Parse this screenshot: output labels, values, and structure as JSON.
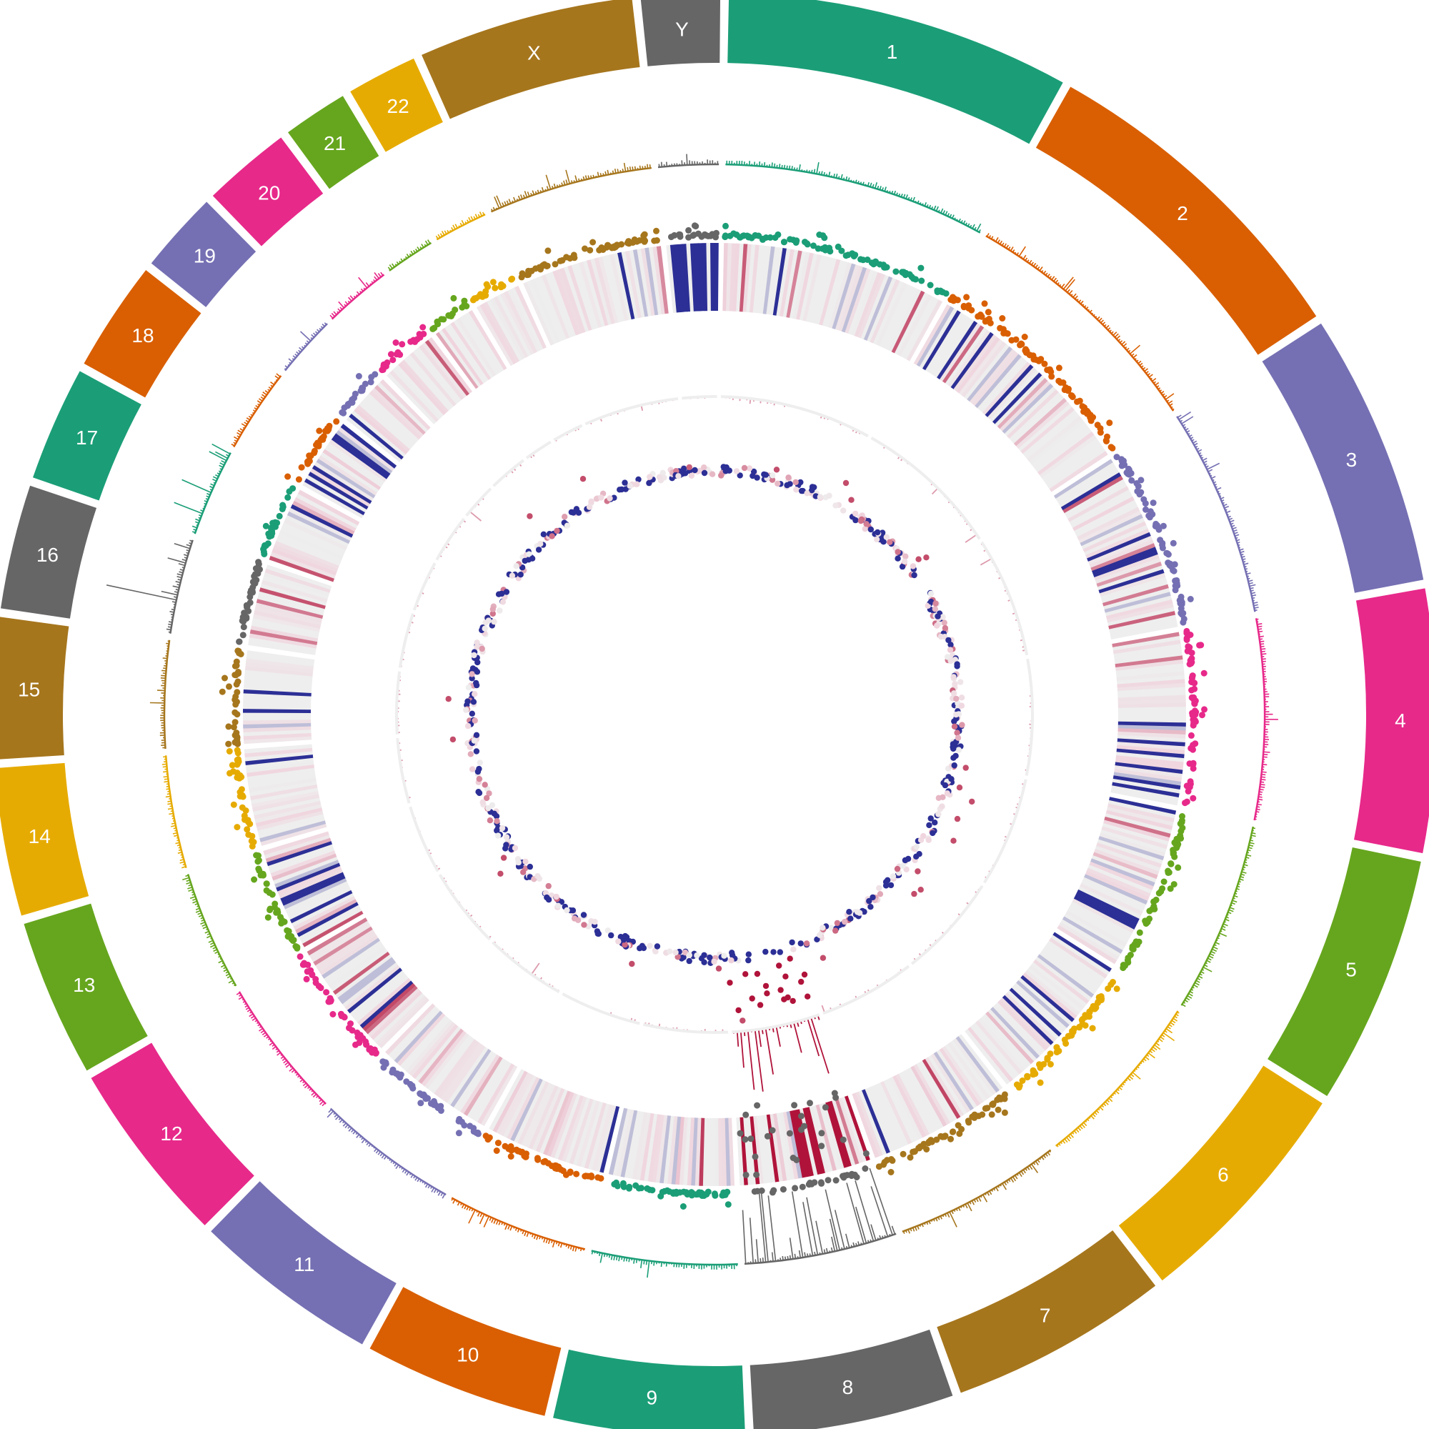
{
  "figure": {
    "type": "circos",
    "chromosomes": [
      {
        "label": "1",
        "color": "#1b9e77",
        "size": 249
      },
      {
        "label": "2",
        "color": "#d95f02",
        "size": 242
      },
      {
        "label": "3",
        "color": "#7570b3",
        "size": 198
      },
      {
        "label": "4",
        "color": "#e7298a",
        "size": 190
      },
      {
        "label": "5",
        "color": "#66a61e",
        "size": 181
      },
      {
        "label": "6",
        "color": "#e6ab02",
        "size": 171
      },
      {
        "label": "7",
        "color": "#a6761d",
        "size": 159
      },
      {
        "label": "8",
        "color": "#666666",
        "size": 145
      },
      {
        "label": "9",
        "color": "#1b9e77",
        "size": 138
      },
      {
        "label": "10",
        "color": "#d95f02",
        "size": 134
      },
      {
        "label": "11",
        "color": "#7570b3",
        "size": 135
      },
      {
        "label": "12",
        "color": "#e7298a",
        "size": 133
      },
      {
        "label": "13",
        "color": "#66a61e",
        "size": 114
      },
      {
        "label": "14",
        "color": "#e6ab02",
        "size": 107
      },
      {
        "label": "15",
        "color": "#a6761d",
        "size": 102
      },
      {
        "label": "16",
        "color": "#666666",
        "size": 90
      },
      {
        "label": "17",
        "color": "#1b9e77",
        "size": 83
      },
      {
        "label": "18",
        "color": "#d95f02",
        "size": 80
      },
      {
        "label": "19",
        "color": "#7570b3",
        "size": 59
      },
      {
        "label": "20",
        "color": "#e7298a",
        "size": 64
      },
      {
        "label": "21",
        "color": "#66a61e",
        "size": 47
      },
      {
        "label": "22",
        "color": "#e6ab02",
        "size": 51
      },
      {
        "label": "X",
        "color": "#a6761d",
        "size": 156
      },
      {
        "label": "Y",
        "color": "#666666",
        "size": 57
      }
    ],
    "heatmap_colors": {
      "low": "#2c2f95",
      "neutral": "#eeeeee",
      "mid": "#f0d5de",
      "high": "#b0133a"
    },
    "tracks": [
      "chromosome-ideogram",
      "outer-histogram",
      "scatter-ring",
      "heatmap-ring",
      "inner-histogram",
      "inner-scatter"
    ]
  }
}
